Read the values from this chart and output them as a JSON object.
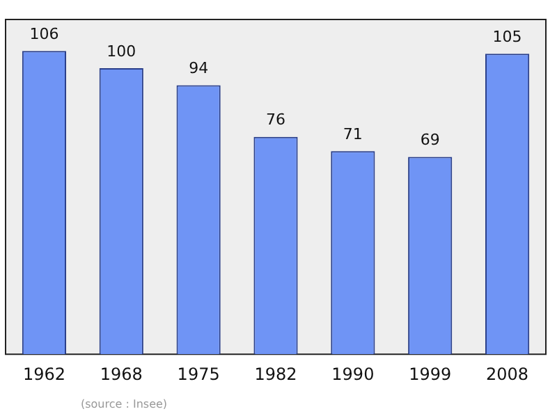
{
  "chart_data": {
    "type": "bar",
    "categories": [
      "1962",
      "1968",
      "1975",
      "1982",
      "1990",
      "1999",
      "2008"
    ],
    "values": [
      106,
      100,
      94,
      76,
      71,
      69,
      105
    ],
    "color": "#6f94f5",
    "ylim": [
      0,
      117
    ],
    "tick_labels": "x",
    "data_labels": true,
    "legend": false,
    "annotations": [
      "(source : Insee)"
    ]
  }
}
